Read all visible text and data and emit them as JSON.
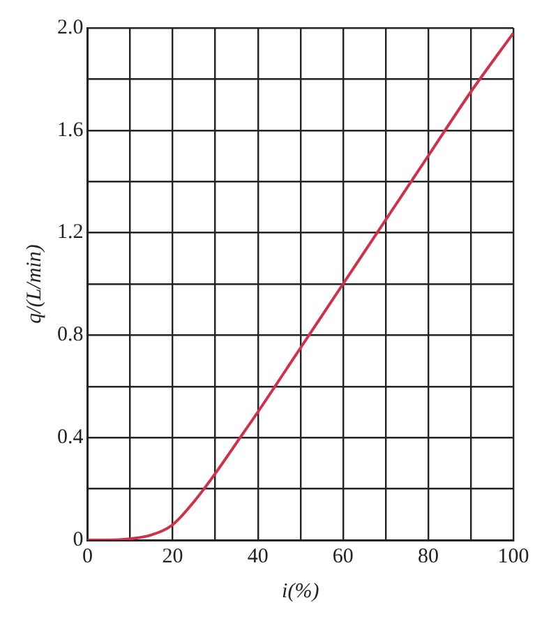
{
  "chart_data": {
    "type": "line",
    "xlabel": "i(%)",
    "ylabel": "q/(L/min)",
    "series": [
      {
        "color": "#d0304a",
        "x": [
          0,
          5,
          10,
          15,
          20,
          25,
          30,
          35,
          40,
          50,
          60,
          70,
          80,
          90,
          100
        ],
        "values": [
          0,
          0,
          0.005,
          0.02,
          0.06,
          0.15,
          0.26,
          0.38,
          0.5,
          0.75,
          1.0,
          1.25,
          1.5,
          1.75,
          1.98
        ]
      }
    ],
    "xlim": [
      0,
      100
    ],
    "ylim": [
      0,
      2
    ],
    "xticks": [
      0,
      {
        "value": 10,
        "label": null
      },
      20,
      {
        "value": 30,
        "label": null
      },
      40,
      {
        "value": 50,
        "label": null
      },
      60,
      {
        "value": 70,
        "label": null
      },
      80,
      {
        "value": 90,
        "label": null
      },
      100
    ],
    "yticks": [
      0,
      {
        "value": 0.2,
        "label": null
      },
      0.4,
      {
        "value": 0.6,
        "label": null
      },
      0.8,
      {
        "value": 1,
        "label": null
      },
      1.2,
      {
        "value": 1.4,
        "label": null
      },
      1.6,
      {
        "value": 1.8,
        "label": null
      },
      {
        "value": 2,
        "label": "2.0"
      }
    ],
    "grid": true,
    "legend": false,
    "marker": "none",
    "line_style": "solid"
  }
}
